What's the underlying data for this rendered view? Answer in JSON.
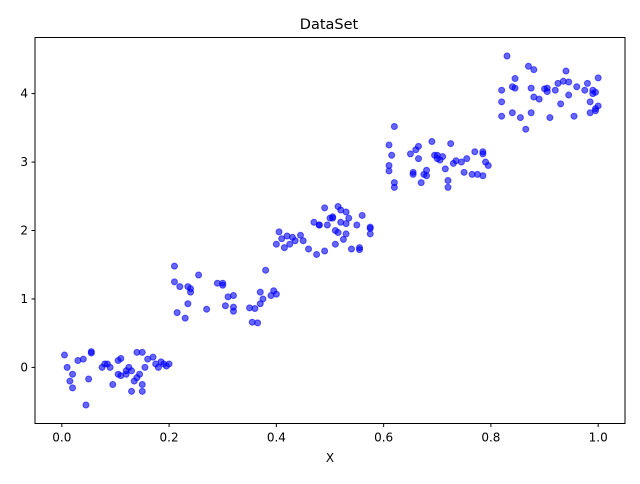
{
  "chart_data": {
    "type": "scatter",
    "title": "DataSet",
    "xlabel": "X",
    "ylabel": "",
    "xlim": [
      -0.05,
      1.05
    ],
    "ylim": [
      -0.82,
      4.82
    ],
    "xticks": [
      0.0,
      0.2,
      0.4,
      0.6,
      0.8,
      1.0
    ],
    "xtick_labels": [
      "0.0",
      "0.2",
      "0.4",
      "0.6",
      "0.8",
      "1.0"
    ],
    "yticks": [
      0,
      1,
      2,
      3,
      4
    ],
    "ytick_labels": [
      "0",
      "1",
      "2",
      "3",
      "4"
    ],
    "grid": false,
    "legend": "none",
    "marker_color": "#0000ff",
    "marker_alpha": 0.6,
    "series": [
      {
        "points": [
          [
            0.005,
            0.18
          ],
          [
            0.01,
            0.0
          ],
          [
            0.015,
            -0.2
          ],
          [
            0.02,
            -0.3
          ],
          [
            0.02,
            -0.1
          ],
          [
            0.03,
            0.1
          ],
          [
            0.04,
            0.12
          ],
          [
            0.045,
            -0.55
          ],
          [
            0.05,
            -0.17
          ],
          [
            0.055,
            0.23
          ],
          [
            0.055,
            0.21
          ],
          [
            0.075,
            0.0
          ],
          [
            0.08,
            0.05
          ],
          [
            0.085,
            0.05
          ],
          [
            0.09,
            0.0
          ],
          [
            0.095,
            -0.25
          ],
          [
            0.105,
            -0.1
          ],
          [
            0.105,
            0.1
          ],
          [
            0.11,
            -0.12
          ],
          [
            0.11,
            0.13
          ],
          [
            0.12,
            -0.05
          ],
          [
            0.12,
            -0.1
          ],
          [
            0.125,
            0.0
          ],
          [
            0.13,
            -0.35
          ],
          [
            0.13,
            -0.05
          ],
          [
            0.135,
            -0.2
          ],
          [
            0.14,
            -0.15
          ],
          [
            0.14,
            0.22
          ],
          [
            0.145,
            -0.1
          ],
          [
            0.15,
            -0.25
          ],
          [
            0.15,
            -0.35
          ],
          [
            0.15,
            0.22
          ],
          [
            0.155,
            0.0
          ],
          [
            0.16,
            0.12
          ],
          [
            0.17,
            0.15
          ],
          [
            0.175,
            0.05
          ],
          [
            0.18,
            0.0
          ],
          [
            0.185,
            0.08
          ],
          [
            0.19,
            0.05
          ],
          [
            0.195,
            0.02
          ],
          [
            0.2,
            0.05
          ],
          [
            0.21,
            1.48
          ],
          [
            0.21,
            1.25
          ],
          [
            0.215,
            0.8
          ],
          [
            0.22,
            1.18
          ],
          [
            0.23,
            0.72
          ],
          [
            0.235,
            1.18
          ],
          [
            0.235,
            0.93
          ],
          [
            0.24,
            1.1
          ],
          [
            0.24,
            1.15
          ],
          [
            0.255,
            1.35
          ],
          [
            0.27,
            0.85
          ],
          [
            0.29,
            1.23
          ],
          [
            0.3,
            1.2
          ],
          [
            0.3,
            1.23
          ],
          [
            0.305,
            0.9
          ],
          [
            0.31,
            1.03
          ],
          [
            0.32,
            1.05
          ],
          [
            0.32,
            0.88
          ],
          [
            0.32,
            0.82
          ],
          [
            0.35,
            0.87
          ],
          [
            0.355,
            0.66
          ],
          [
            0.36,
            0.86
          ],
          [
            0.365,
            0.65
          ],
          [
            0.37,
            0.93
          ],
          [
            0.37,
            1.1
          ],
          [
            0.375,
            1.0
          ],
          [
            0.38,
            1.42
          ],
          [
            0.39,
            1.05
          ],
          [
            0.395,
            1.12
          ],
          [
            0.4,
            1.07
          ],
          [
            0.4,
            1.8
          ],
          [
            0.405,
            1.98
          ],
          [
            0.41,
            1.88
          ],
          [
            0.415,
            1.75
          ],
          [
            0.42,
            1.92
          ],
          [
            0.425,
            1.8
          ],
          [
            0.43,
            1.9
          ],
          [
            0.435,
            1.85
          ],
          [
            0.445,
            1.93
          ],
          [
            0.45,
            1.85
          ],
          [
            0.46,
            1.73
          ],
          [
            0.47,
            2.12
          ],
          [
            0.475,
            1.65
          ],
          [
            0.48,
            2.08
          ],
          [
            0.48,
            2.08
          ],
          [
            0.49,
            2.33
          ],
          [
            0.49,
            1.7
          ],
          [
            0.495,
            2.08
          ],
          [
            0.5,
            2.18
          ],
          [
            0.505,
            2.18
          ],
          [
            0.505,
            2.2
          ],
          [
            0.51,
            2.0
          ],
          [
            0.51,
            1.8
          ],
          [
            0.515,
            2.35
          ],
          [
            0.515,
            1.97
          ],
          [
            0.52,
            2.3
          ],
          [
            0.52,
            2.12
          ],
          [
            0.525,
            1.87
          ],
          [
            0.53,
            2.1
          ],
          [
            0.53,
            2.27
          ],
          [
            0.53,
            1.95
          ],
          [
            0.535,
            2.18
          ],
          [
            0.54,
            1.73
          ],
          [
            0.55,
            2.08
          ],
          [
            0.555,
            1.75
          ],
          [
            0.555,
            1.72
          ],
          [
            0.56,
            2.22
          ],
          [
            0.575,
            2.05
          ],
          [
            0.575,
            1.95
          ],
          [
            0.575,
            2.03
          ],
          [
            0.61,
            3.25
          ],
          [
            0.61,
            2.95
          ],
          [
            0.61,
            2.87
          ],
          [
            0.615,
            3.1
          ],
          [
            0.62,
            3.52
          ],
          [
            0.62,
            2.7
          ],
          [
            0.62,
            2.63
          ],
          [
            0.65,
            3.12
          ],
          [
            0.655,
            2.85
          ],
          [
            0.655,
            2.82
          ],
          [
            0.66,
            3.18
          ],
          [
            0.665,
            3.05
          ],
          [
            0.665,
            3.23
          ],
          [
            0.67,
            2.7
          ],
          [
            0.675,
            2.82
          ],
          [
            0.68,
            2.8
          ],
          [
            0.68,
            2.88
          ],
          [
            0.69,
            3.3
          ],
          [
            0.695,
            3.1
          ],
          [
            0.7,
            3.1
          ],
          [
            0.7,
            3.05
          ],
          [
            0.705,
            3.03
          ],
          [
            0.71,
            3.08
          ],
          [
            0.715,
            2.9
          ],
          [
            0.72,
            2.73
          ],
          [
            0.72,
            2.63
          ],
          [
            0.725,
            3.27
          ],
          [
            0.73,
            2.98
          ],
          [
            0.735,
            3.02
          ],
          [
            0.745,
            3.0
          ],
          [
            0.75,
            2.85
          ],
          [
            0.755,
            3.05
          ],
          [
            0.765,
            2.82
          ],
          [
            0.77,
            3.15
          ],
          [
            0.775,
            2.82
          ],
          [
            0.785,
            2.8
          ],
          [
            0.785,
            3.12
          ],
          [
            0.79,
            3.0
          ],
          [
            0.795,
            2.95
          ],
          [
            0.785,
            3.15
          ],
          [
            0.82,
            4.05
          ],
          [
            0.82,
            3.88
          ],
          [
            0.82,
            3.67
          ],
          [
            0.83,
            4.55
          ],
          [
            0.84,
            4.1
          ],
          [
            0.84,
            3.72
          ],
          [
            0.845,
            4.22
          ],
          [
            0.845,
            4.08
          ],
          [
            0.855,
            3.65
          ],
          [
            0.865,
            3.48
          ],
          [
            0.87,
            4.4
          ],
          [
            0.875,
            4.08
          ],
          [
            0.875,
            3.72
          ],
          [
            0.88,
            4.35
          ],
          [
            0.88,
            3.95
          ],
          [
            0.89,
            3.92
          ],
          [
            0.9,
            4.07
          ],
          [
            0.905,
            4.08
          ],
          [
            0.905,
            4.03
          ],
          [
            0.91,
            3.65
          ],
          [
            0.92,
            4.05
          ],
          [
            0.925,
            4.15
          ],
          [
            0.93,
            3.85
          ],
          [
            0.935,
            4.18
          ],
          [
            0.94,
            4.33
          ],
          [
            0.945,
            3.98
          ],
          [
            0.945,
            4.17
          ],
          [
            0.955,
            3.67
          ],
          [
            0.96,
            4.1
          ],
          [
            0.975,
            4.05
          ],
          [
            0.98,
            4.15
          ],
          [
            0.985,
            3.72
          ],
          [
            0.985,
            3.88
          ],
          [
            0.99,
            4.05
          ],
          [
            0.99,
            4.0
          ],
          [
            0.995,
            3.75
          ],
          [
            0.995,
            4.02
          ],
          [
            1.0,
            4.23
          ],
          [
            1.0,
            3.82
          ],
          [
            0.995,
            3.78
          ]
        ]
      }
    ]
  }
}
